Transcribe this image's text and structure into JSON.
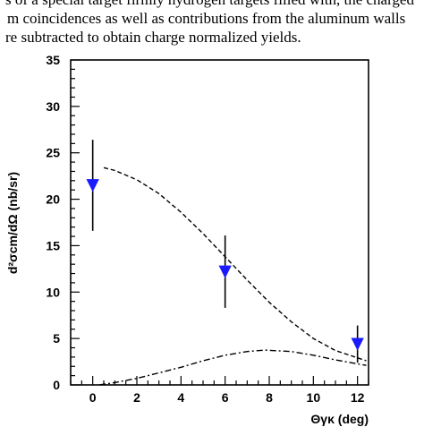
{
  "page_text": {
    "line1": "s of a special target firmly hydrogen targets filled with, the charged",
    "line2": "m coincidences as well as contributions from the aluminum walls",
    "line3": "re subtracted to obtain charge normalized yields."
  },
  "chart_data": {
    "type": "scatter",
    "xlabel": "Θγκ (deg)",
    "ylabel": "d²σcm/dΩ (nb/sr)",
    "xlim": [
      -1,
      12.5
    ],
    "ylim": [
      0,
      35
    ],
    "x_ticks": [
      0,
      2,
      4,
      6,
      8,
      10,
      12
    ],
    "y_ticks": [
      0,
      5,
      10,
      15,
      20,
      25,
      30,
      35
    ],
    "grid": false,
    "points": {
      "x": [
        0,
        6,
        12
      ],
      "y": [
        21.5,
        12.2,
        4.4
      ],
      "err": [
        4.9,
        3.9,
        2.0
      ],
      "marker": "down-triangle",
      "color": "#1a1aff"
    },
    "curves": [
      {
        "style": "dashed",
        "x": [
          0.5,
          1,
          2,
          3,
          4,
          5,
          6,
          7,
          8,
          9,
          10,
          11,
          12.4
        ],
        "y": [
          23.4,
          23.1,
          22.1,
          20.6,
          18.6,
          16.3,
          13.8,
          11.3,
          8.9,
          6.8,
          5.0,
          3.7,
          2.6
        ]
      },
      {
        "style": "dash-dot",
        "x": [
          0.3,
          1,
          2,
          3,
          4,
          5,
          6,
          7,
          7.8,
          9,
          10,
          11,
          12.4
        ],
        "y": [
          0.0,
          0.25,
          0.7,
          1.3,
          1.9,
          2.6,
          3.2,
          3.6,
          3.75,
          3.6,
          3.2,
          2.7,
          2.1
        ]
      }
    ]
  }
}
